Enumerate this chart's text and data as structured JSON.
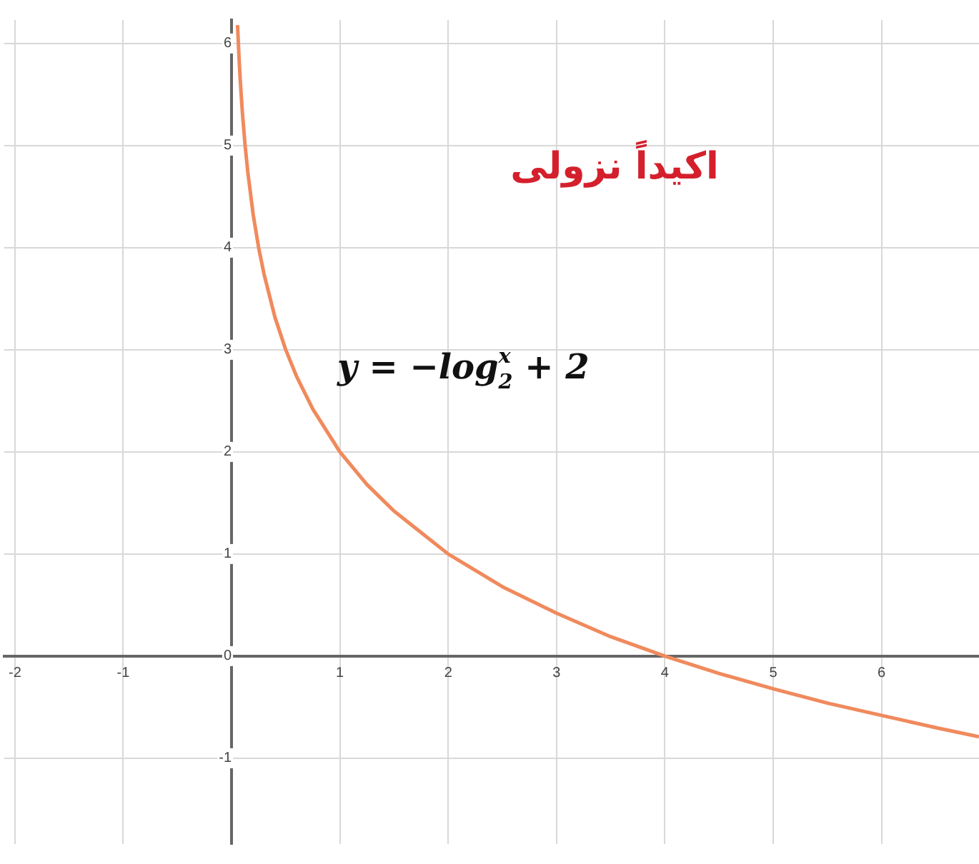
{
  "chart_data": {
    "type": "line",
    "xlim": [
      -2.1,
      6.9
    ],
    "ylim": [
      -1.84,
      6.23
    ],
    "xticks": [
      -2,
      -1,
      {
        "value": 0,
        "label": null
      },
      1,
      2,
      3,
      4,
      5,
      6
    ],
    "yticks": [
      -1,
      0,
      1,
      2,
      3,
      4,
      5,
      6
    ],
    "grid": true,
    "legend": false,
    "marker": "none",
    "line_style": "solid",
    "series": [
      {
        "color": "#f08a5d",
        "x": [
          0.055,
          0.07,
          0.08,
          0.1,
          0.125,
          0.15,
          0.2,
          0.25,
          0.3,
          0.4,
          0.5,
          0.6,
          0.75,
          1,
          1.25,
          1.5,
          2,
          2.5,
          3,
          3.5,
          4,
          4.5,
          5,
          5.5,
          6,
          6.5,
          6.9
        ],
        "values": [
          6.18,
          5.84,
          5.64,
          5.32,
          5,
          4.74,
          4.32,
          4,
          3.74,
          3.32,
          3,
          2.74,
          2.42,
          2,
          1.68,
          1.42,
          1,
          0.68,
          0.42,
          0.19,
          0,
          -0.17,
          -0.32,
          -0.46,
          -0.58,
          -0.7,
          -0.79
        ]
      }
    ],
    "annotations": [
      "اكيداً نزولى",
      "y = −log$_{2}$$^{x}$ + 2"
    ]
  }
}
